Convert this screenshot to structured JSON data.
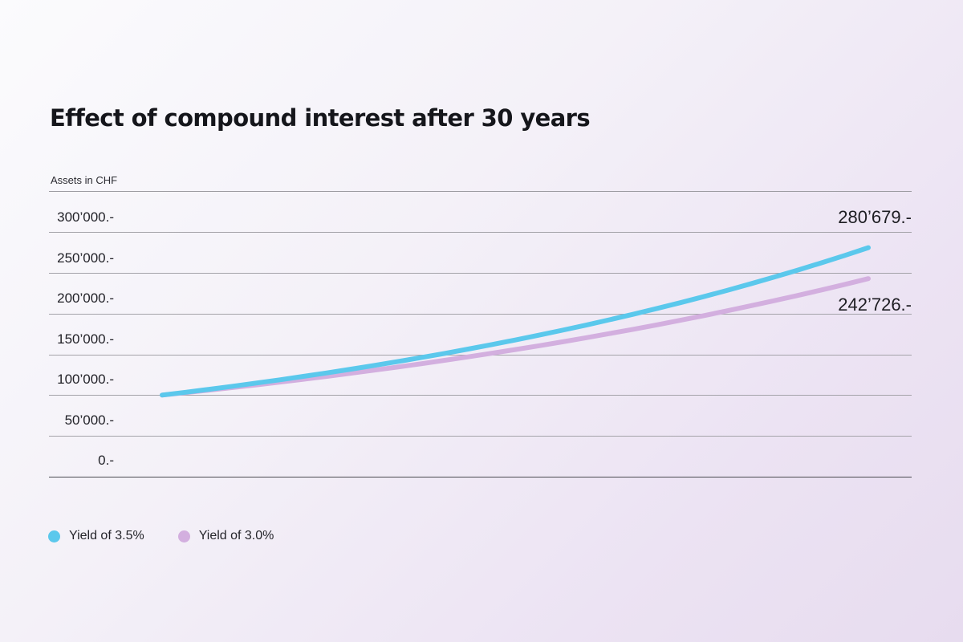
{
  "title": "Effect of compound interest after 30 years",
  "y_axis_label": "Assets in CHF",
  "y_ticks": [
    "300’000.-",
    "250’000.-",
    "200’000.-",
    "150’000.-",
    "100’000.-",
    "50’000.-",
    "0.-"
  ],
  "end_labels": {
    "high": "280’679.-",
    "low": "242’726.-"
  },
  "legend": [
    {
      "label": "Yield of 3.5%",
      "color": "#5bc8ec"
    },
    {
      "label": "Yield of 3.0%",
      "color": "#d3afdf"
    }
  ],
  "chart_data": {
    "type": "line",
    "title": "Effect of compound interest after 30 years",
    "xlabel": "",
    "ylabel": "Assets in CHF",
    "ylim": [
      0,
      300000
    ],
    "yticks": [
      0,
      50000,
      100000,
      150000,
      200000,
      250000,
      300000
    ],
    "ytick_labels": [
      "0.-",
      "50’000.-",
      "100’000.-",
      "150’000.-",
      "200’000.-",
      "250’000.-",
      "300’000.-"
    ],
    "grid": true,
    "legend_position": "bottom-left",
    "x": [
      0,
      1,
      2,
      3,
      4,
      5,
      6,
      7,
      8,
      9,
      10,
      11,
      12,
      13,
      14,
      15,
      16,
      17,
      18,
      19,
      20,
      21,
      22,
      23,
      24,
      25,
      26,
      27,
      28,
      29,
      30
    ],
    "series": [
      {
        "name": "Yield of 3.5%",
        "color": "#5bc8ec",
        "values": [
          100000,
          103500,
          107123,
          110872,
          114752,
          118769,
          122926,
          127228,
          131681,
          136290,
          141060,
          145997,
          151107,
          156396,
          161869,
          167535,
          173399,
          179468,
          185749,
          192250,
          198979,
          205943,
          213151,
          220611,
          228333,
          236324,
          244596,
          253157,
          262017,
          271188,
          280679
        ],
        "end_label": "280’679.-"
      },
      {
        "name": "Yield of 3.0%",
        "color": "#d3afdf",
        "values": [
          100000,
          103000,
          106090,
          109273,
          112551,
          115927,
          119405,
          122987,
          126677,
          130477,
          134392,
          138423,
          142576,
          146853,
          151259,
          155797,
          160471,
          165285,
          170243,
          175351,
          180611,
          186029,
          191610,
          197359,
          203279,
          209378,
          215659,
          222129,
          228793,
          235657,
          242726
        ],
        "end_label": "242’726.-"
      }
    ]
  }
}
